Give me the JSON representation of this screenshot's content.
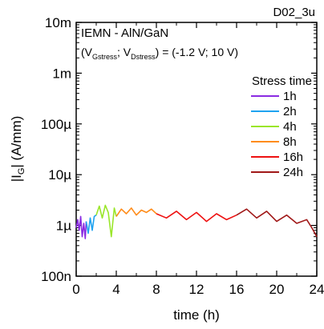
{
  "chart_data": {
    "type": "line",
    "corner_label": "D02_3u",
    "annotation_line1": "IEMN - AlN/GaN",
    "annotation_line2": {
      "open": "(V",
      "sub1": "Gstress",
      "sep": "; V",
      "sub2": "Dstress",
      "rest": ") = (-1.2 V; 10 V)"
    },
    "xlabel": "time (h)",
    "ylabel": {
      "main": "|I",
      "sub": "G",
      "rest": "| (A/mm)"
    },
    "xlim": [
      0,
      24
    ],
    "ylim": [
      1e-07,
      0.01
    ],
    "yscale": "log",
    "x_ticks": [
      "0",
      "4",
      "8",
      "12",
      "16",
      "20",
      "24"
    ],
    "x_tick_values": [
      0,
      4,
      8,
      12,
      16,
      20,
      24
    ],
    "y_ticks": [
      "10m",
      "1m",
      "100µ",
      "10µ",
      "1µ",
      "100n"
    ],
    "y_tick_values": [
      0.01,
      0.001,
      0.0001,
      1e-05,
      1e-06,
      1e-07
    ],
    "legend_title": "Stress time",
    "legend_title_color": "#1a1aff",
    "legend_position": "right",
    "series": [
      {
        "name": "1h",
        "color": "#8a2be2",
        "x": [
          0.0,
          0.15,
          0.3,
          0.45,
          0.6,
          0.75,
          0.9,
          1.0
        ],
        "y": [
          9e-07,
          1.3e-06,
          8e-07,
          1.5e-06,
          6e-07,
          1.1e-06,
          5.5e-07,
          1.2e-06
        ]
      },
      {
        "name": "2h",
        "color": "#1fa3f0",
        "x": [
          1.0,
          1.2,
          1.4,
          1.6,
          1.8,
          2.0
        ],
        "y": [
          1.2e-06,
          7e-07,
          1.4e-06,
          8e-07,
          1.5e-06,
          1.6e-06
        ]
      },
      {
        "name": "4h",
        "color": "#9ae62a",
        "x": [
          2.0,
          2.3,
          2.6,
          2.9,
          3.2,
          3.5,
          3.8,
          4.0
        ],
        "y": [
          1.6e-06,
          2.4e-06,
          1.4e-06,
          2.5e-06,
          1.8e-06,
          6e-07,
          2.2e-06,
          1.5e-06
        ]
      },
      {
        "name": "8h",
        "color": "#ff8c1a",
        "x": [
          4.0,
          4.5,
          5.0,
          5.5,
          6.0,
          6.5,
          7.0,
          7.5,
          8.0
        ],
        "y": [
          1.5e-06,
          2.1e-06,
          1.7e-06,
          2.2e-06,
          1.6e-06,
          2e-06,
          1.8e-06,
          2.1e-06,
          1.7e-06
        ]
      },
      {
        "name": "16h",
        "color": "#ee1111",
        "x": [
          8.0,
          9.0,
          10.0,
          11.0,
          12.0,
          13.0,
          14.0,
          15.0,
          16.0
        ],
        "y": [
          1.7e-06,
          1.4e-06,
          1.9e-06,
          1.3e-06,
          1.8e-06,
          1.2e-06,
          1.7e-06,
          1.3e-06,
          1.6e-06
        ]
      },
      {
        "name": "24h",
        "color": "#a01818",
        "x": [
          16.0,
          17.0,
          18.0,
          19.0,
          20.0,
          21.0,
          22.0,
          23.0,
          23.5,
          24.0
        ],
        "y": [
          1.6e-06,
          2.1e-06,
          1.4e-06,
          1.9e-06,
          1.2e-06,
          1.6e-06,
          1.1e-06,
          1.3e-06,
          9e-07,
          6e-07
        ]
      }
    ]
  }
}
